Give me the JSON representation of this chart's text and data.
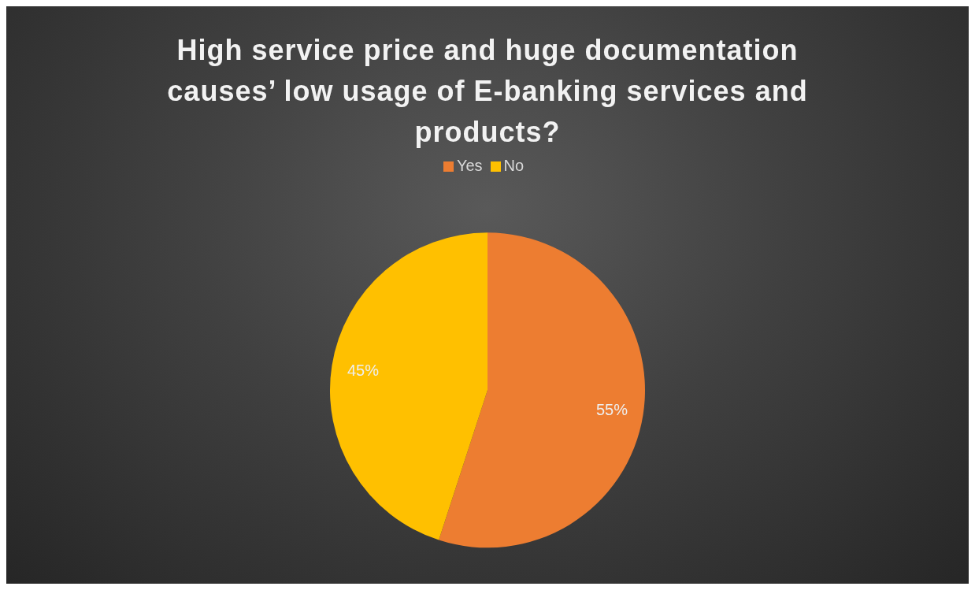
{
  "chart_data": {
    "type": "pie",
    "title": "High service price and huge documentation causes’ low usage of E-banking services and products?",
    "categories": [
      "Yes",
      "No"
    ],
    "values": [
      55,
      45
    ],
    "colors": [
      "#ed7d31",
      "#ffc000"
    ],
    "value_labels": [
      "55%",
      "45%"
    ],
    "legend": "top"
  }
}
